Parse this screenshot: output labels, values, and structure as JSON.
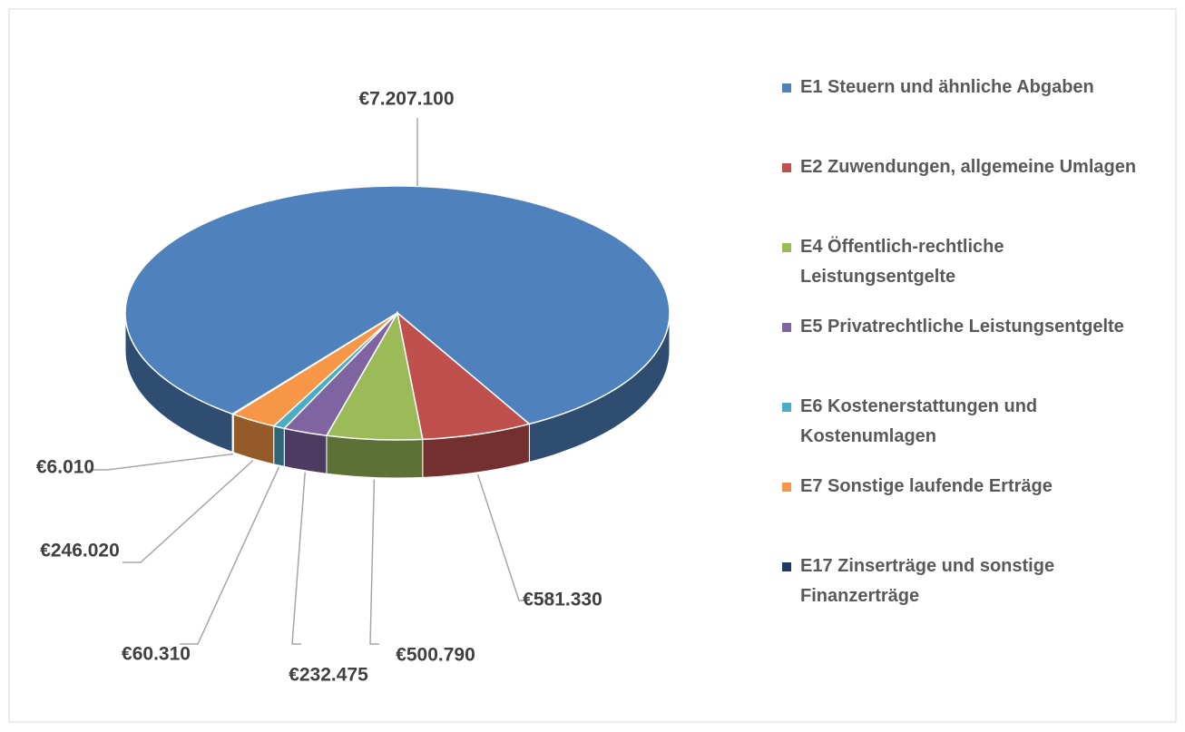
{
  "chart_data": {
    "type": "pie",
    "categories": [
      "E1 Steuern und ähnliche Abgaben",
      "E2 Zuwendungen, allgemeine Umlagen",
      "E4 Öffentlich-rechtliche Leistungsentgelte",
      "E5 Privatrechtliche Leistungsentgelte",
      "E6 Kostenerstattungen und Kostenumlagen",
      "E7 Sonstige laufende Erträge",
      "E17 Zinserträge und sonstige Finanzerträge"
    ],
    "values": [
      7207100,
      581330,
      500790,
      232475,
      60310,
      246020,
      6010
    ],
    "value_labels": [
      "€7.207.100",
      "€581.330",
      "€500.790",
      "€232.475",
      "€60.310",
      "€246.020",
      "€6.010"
    ],
    "colors": [
      "#4f81bd",
      "#c0504d",
      "#9bbb59",
      "#8064a2",
      "#4bacc6",
      "#f79646",
      "#1f3864"
    ],
    "legend": "right"
  }
}
